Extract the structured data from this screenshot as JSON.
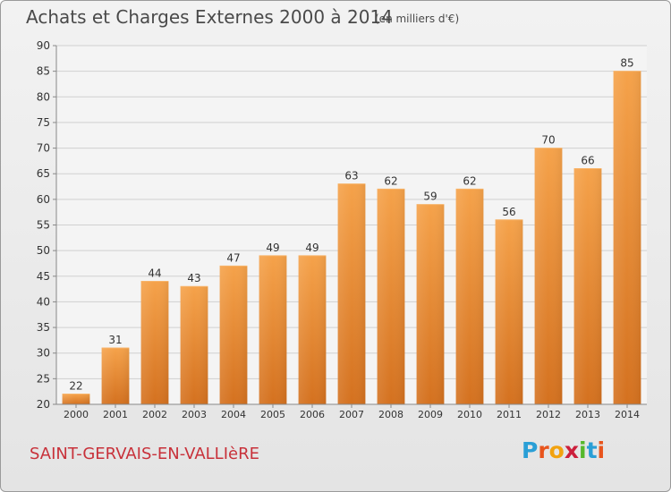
{
  "header": {
    "title": "Achats et Charges Externes 2000 à 2014",
    "unit": "(en milliers d'€)"
  },
  "footer": {
    "commune": "SAINT-GERVAIS-EN-VALLIèRE",
    "logo_letters": [
      "P",
      "r",
      "o",
      "x",
      "i",
      "t",
      "i"
    ],
    "logo_colors": [
      "#2a9fd6",
      "#e8541c",
      "#f2a20f",
      "#cc1f3c",
      "#56b82b",
      "#2a9fd6",
      "#e8541c"
    ]
  },
  "chart_data": {
    "type": "bar",
    "categories": [
      "2000",
      "2001",
      "2002",
      "2003",
      "2004",
      "2005",
      "2006",
      "2007",
      "2008",
      "2009",
      "2010",
      "2011",
      "2012",
      "2013",
      "2014"
    ],
    "values": [
      22,
      31,
      44,
      43,
      47,
      49,
      49,
      63,
      62,
      59,
      62,
      56,
      70,
      66,
      85
    ],
    "title": "Achats et Charges Externes 2000 à 2014",
    "xlabel": "",
    "ylabel": "",
    "ylim": [
      20,
      90
    ],
    "yticks": [
      20,
      25,
      30,
      35,
      40,
      45,
      50,
      55,
      60,
      65,
      70,
      75,
      80,
      85,
      90
    ],
    "grid": true,
    "bar_color": "#f09a3e",
    "bar_color_dark": "#d4701e"
  }
}
